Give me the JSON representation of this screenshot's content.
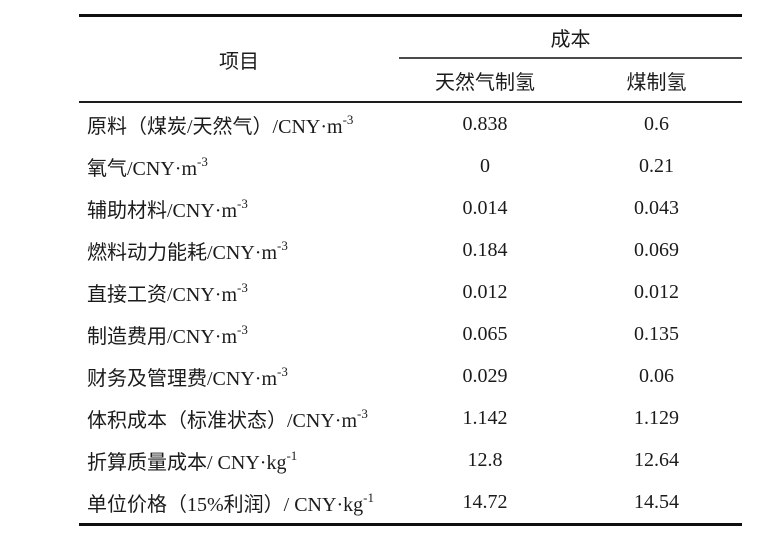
{
  "table": {
    "header": {
      "item_label": "项目",
      "cost_label": "成本",
      "col_gas": "天然气制氢",
      "col_coal": "煤制氢"
    },
    "rows": [
      {
        "label": "原料（煤炭/天然气）/CNY·m",
        "sup": "-3",
        "gas": "0.838",
        "coal": "0.6"
      },
      {
        "label": "氧气/CNY·m",
        "sup": "-3",
        "gas": "0",
        "coal": "0.21"
      },
      {
        "label": "辅助材料/CNY·m",
        "sup": "-3",
        "gas": "0.014",
        "coal": "0.043"
      },
      {
        "label": "燃料动力能耗/CNY·m",
        "sup": "-3",
        "gas": "0.184",
        "coal": "0.069"
      },
      {
        "label": "直接工资/CNY·m",
        "sup": "-3",
        "gas": "0.012",
        "coal": "0.012"
      },
      {
        "label": "制造费用/CNY·m",
        "sup": "-3",
        "gas": "0.065",
        "coal": "0.135"
      },
      {
        "label": "财务及管理费/CNY·m",
        "sup": "-3",
        "gas": "0.029",
        "coal": "0.06"
      },
      {
        "label": "体积成本（标准状态）/CNY·m",
        "sup": "-3",
        "gas": "1.142",
        "coal": "1.129"
      },
      {
        "label": "折算质量成本/ CNY·kg",
        "sup": "-1",
        "gas": "12.8",
        "coal": "12.64"
      },
      {
        "label": "单位价格（15%利润）/ CNY·kg",
        "sup": "-1",
        "gas": "14.72",
        "coal": "14.54"
      }
    ]
  },
  "colors": {
    "text": "#1b1b1b",
    "outer_border": "#0f0f0f",
    "header_rule": "#1c1c1c",
    "cost_span_rule": "#4a4a4a",
    "background": "#ffffff"
  }
}
